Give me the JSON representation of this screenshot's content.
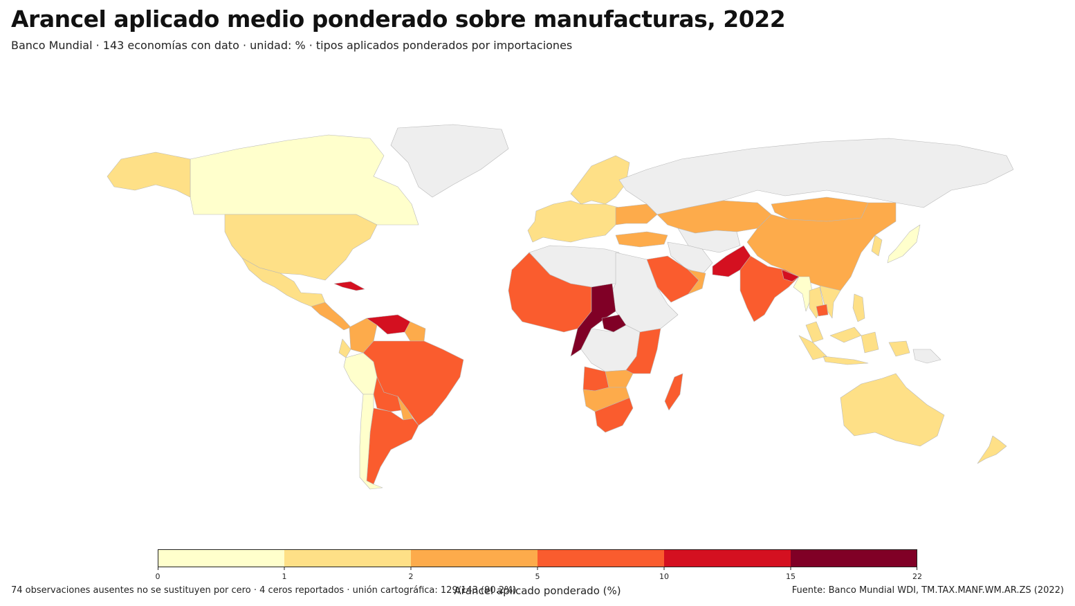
{
  "title": "Arancel aplicado medio ponderado sobre manufacturas, 2022",
  "subtitle": "Banco Mundial · 143 economías con dato · unidad: % · tipos aplicados ponderados por importaciones",
  "legend": {
    "title": "Arancel aplicado ponderado (%)",
    "ticks": [
      "0",
      "1",
      "2",
      "5",
      "10",
      "15",
      "22"
    ],
    "bins": [
      {
        "from": 0,
        "to": 1,
        "color": "#ffffcc"
      },
      {
        "from": 1,
        "to": 2,
        "color": "#fee087"
      },
      {
        "from": 2,
        "to": 5,
        "color": "#fdab4b"
      },
      {
        "from": 5,
        "to": 10,
        "color": "#fa5c2e"
      },
      {
        "from": 10,
        "to": 15,
        "color": "#d41020"
      },
      {
        "from": 15,
        "to": 22,
        "color": "#800026"
      }
    ]
  },
  "footer": {
    "left": "74 observaciones ausentes no se sustituyen por cero · 4 ceros reportados · unión cartográfica: 129/143 (90.2%)",
    "right": "Fuente: Banco Mundial WDI, TM.TAX.MANF.WM.AR.ZS (2022)"
  },
  "colors": {
    "no_data": "#eeeeee",
    "border": "#b8b8b8"
  },
  "regions": [
    {
      "name": "Canada",
      "bin": 0
    },
    {
      "name": "Alaska",
      "bin": 1
    },
    {
      "name": "United States",
      "bin": 1
    },
    {
      "name": "Mexico",
      "bin": 1
    },
    {
      "name": "Greenland",
      "bin": null
    },
    {
      "name": "Cuba",
      "bin": 4
    },
    {
      "name": "Central America",
      "bin": 2
    },
    {
      "name": "Colombia",
      "bin": 2
    },
    {
      "name": "Venezuela",
      "bin": 4
    },
    {
      "name": "Ecuador",
      "bin": 1
    },
    {
      "name": "Peru",
      "bin": 0
    },
    {
      "name": "Brazil",
      "bin": 3
    },
    {
      "name": "Bolivia",
      "bin": 3
    },
    {
      "name": "Paraguay",
      "bin": 2
    },
    {
      "name": "Argentina",
      "bin": 3
    },
    {
      "name": "Chile",
      "bin": 0
    },
    {
      "name": "Guyana Suriname",
      "bin": 2
    },
    {
      "name": "Europe",
      "bin": 1
    },
    {
      "name": "Scandinavia",
      "bin": 1
    },
    {
      "name": "Ukraine",
      "bin": 2
    },
    {
      "name": "Turkey",
      "bin": 2
    },
    {
      "name": "Russia",
      "bin": null
    },
    {
      "name": "Kazakhstan",
      "bin": 2
    },
    {
      "name": "China",
      "bin": 2
    },
    {
      "name": "Mongolia",
      "bin": 2
    },
    {
      "name": "Central Asia",
      "bin": null
    },
    {
      "name": "Iran",
      "bin": null
    },
    {
      "name": "Pakistan",
      "bin": 4
    },
    {
      "name": "India",
      "bin": 3
    },
    {
      "name": "Bangladesh",
      "bin": 4
    },
    {
      "name": "Myanmar",
      "bin": 0
    },
    {
      "name": "Thailand",
      "bin": 1
    },
    {
      "name": "Vietnam",
      "bin": 1
    },
    {
      "name": "Cambodia",
      "bin": 3
    },
    {
      "name": "Malaysia",
      "bin": 1
    },
    {
      "name": "Indonesia",
      "bin": 1
    },
    {
      "name": "Philippines",
      "bin": 1
    },
    {
      "name": "Japan",
      "bin": 0
    },
    {
      "name": "Korea",
      "bin": 1
    },
    {
      "name": "Saudi Arabia",
      "bin": 3
    },
    {
      "name": "Oman",
      "bin": 2
    },
    {
      "name": "West Africa",
      "bin": 3
    },
    {
      "name": "Algeria Libya",
      "bin": null
    },
    {
      "name": "Chad CAR Congo",
      "bin": 5
    },
    {
      "name": "Cameroon",
      "bin": 5
    },
    {
      "name": "Sudan Ethiopia",
      "bin": null
    },
    {
      "name": "DR Congo",
      "bin": null
    },
    {
      "name": "Kenya Tanzania",
      "bin": 3
    },
    {
      "name": "Angola",
      "bin": 3
    },
    {
      "name": "Zambia",
      "bin": 2
    },
    {
      "name": "Namibia Botswana Zimbabwe",
      "bin": 2
    },
    {
      "name": "South Africa",
      "bin": 3
    },
    {
      "name": "Madagascar",
      "bin": 3
    },
    {
      "name": "Australia",
      "bin": 1
    },
    {
      "name": "New Zealand",
      "bin": 1
    },
    {
      "name": "Papua New Guinea",
      "bin": null
    }
  ]
}
